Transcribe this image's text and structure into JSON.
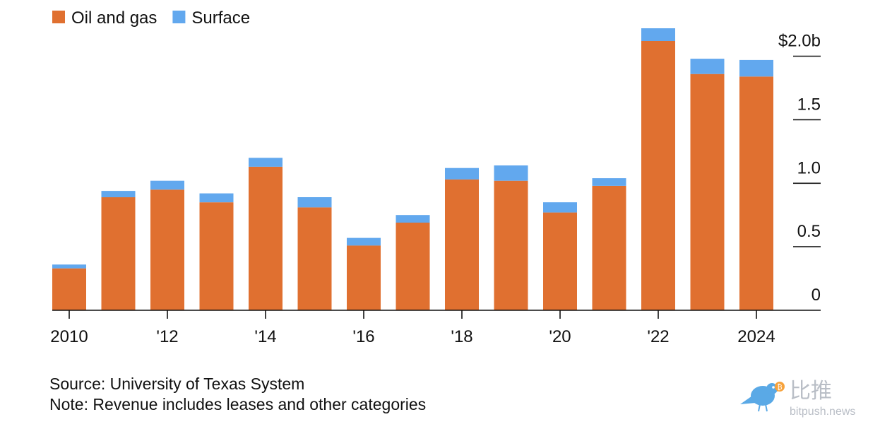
{
  "chart_data": {
    "type": "bar",
    "stacked": true,
    "x": [
      2010,
      2011,
      2012,
      2013,
      2014,
      2015,
      2016,
      2017,
      2018,
      2019,
      2020,
      2021,
      2022,
      2023,
      2024
    ],
    "x_tick_labels": [
      {
        "x": 2010,
        "label": "2010"
      },
      {
        "x": 2012,
        "label": "'12"
      },
      {
        "x": 2014,
        "label": "'14"
      },
      {
        "x": 2016,
        "label": "'16"
      },
      {
        "x": 2018,
        "label": "'18"
      },
      {
        "x": 2020,
        "label": "'20"
      },
      {
        "x": 2022,
        "label": "'22"
      },
      {
        "x": 2024,
        "label": "2024"
      }
    ],
    "series": [
      {
        "name": "Oil and gas",
        "color": "#e07030",
        "values": [
          0.33,
          0.89,
          0.95,
          0.85,
          1.13,
          0.81,
          0.51,
          0.69,
          1.03,
          1.02,
          0.77,
          0.98,
          2.12,
          1.86,
          1.84
        ]
      },
      {
        "name": "Surface",
        "color": "#62a8ee",
        "values": [
          0.03,
          0.05,
          0.07,
          0.07,
          0.07,
          0.08,
          0.06,
          0.06,
          0.09,
          0.12,
          0.08,
          0.06,
          0.1,
          0.12,
          0.13
        ]
      }
    ],
    "y_ticks": [
      {
        "value": 0,
        "label": "0"
      },
      {
        "value": 0.5,
        "label": "0.5"
      },
      {
        "value": 1.0,
        "label": "1.0"
      },
      {
        "value": 1.5,
        "label": "1.5"
      },
      {
        "value": 2.0,
        "label": "$2.0b"
      }
    ],
    "ylim": [
      0,
      2.22
    ],
    "y_axis_position": "right",
    "legend_position": "top-left",
    "grid": false
  },
  "footer": {
    "source": "Source: University of Texas System",
    "note": "Note: Revenue includes leases and other categories"
  },
  "watermark": {
    "brand": "比推",
    "url": "bitpush.news"
  }
}
